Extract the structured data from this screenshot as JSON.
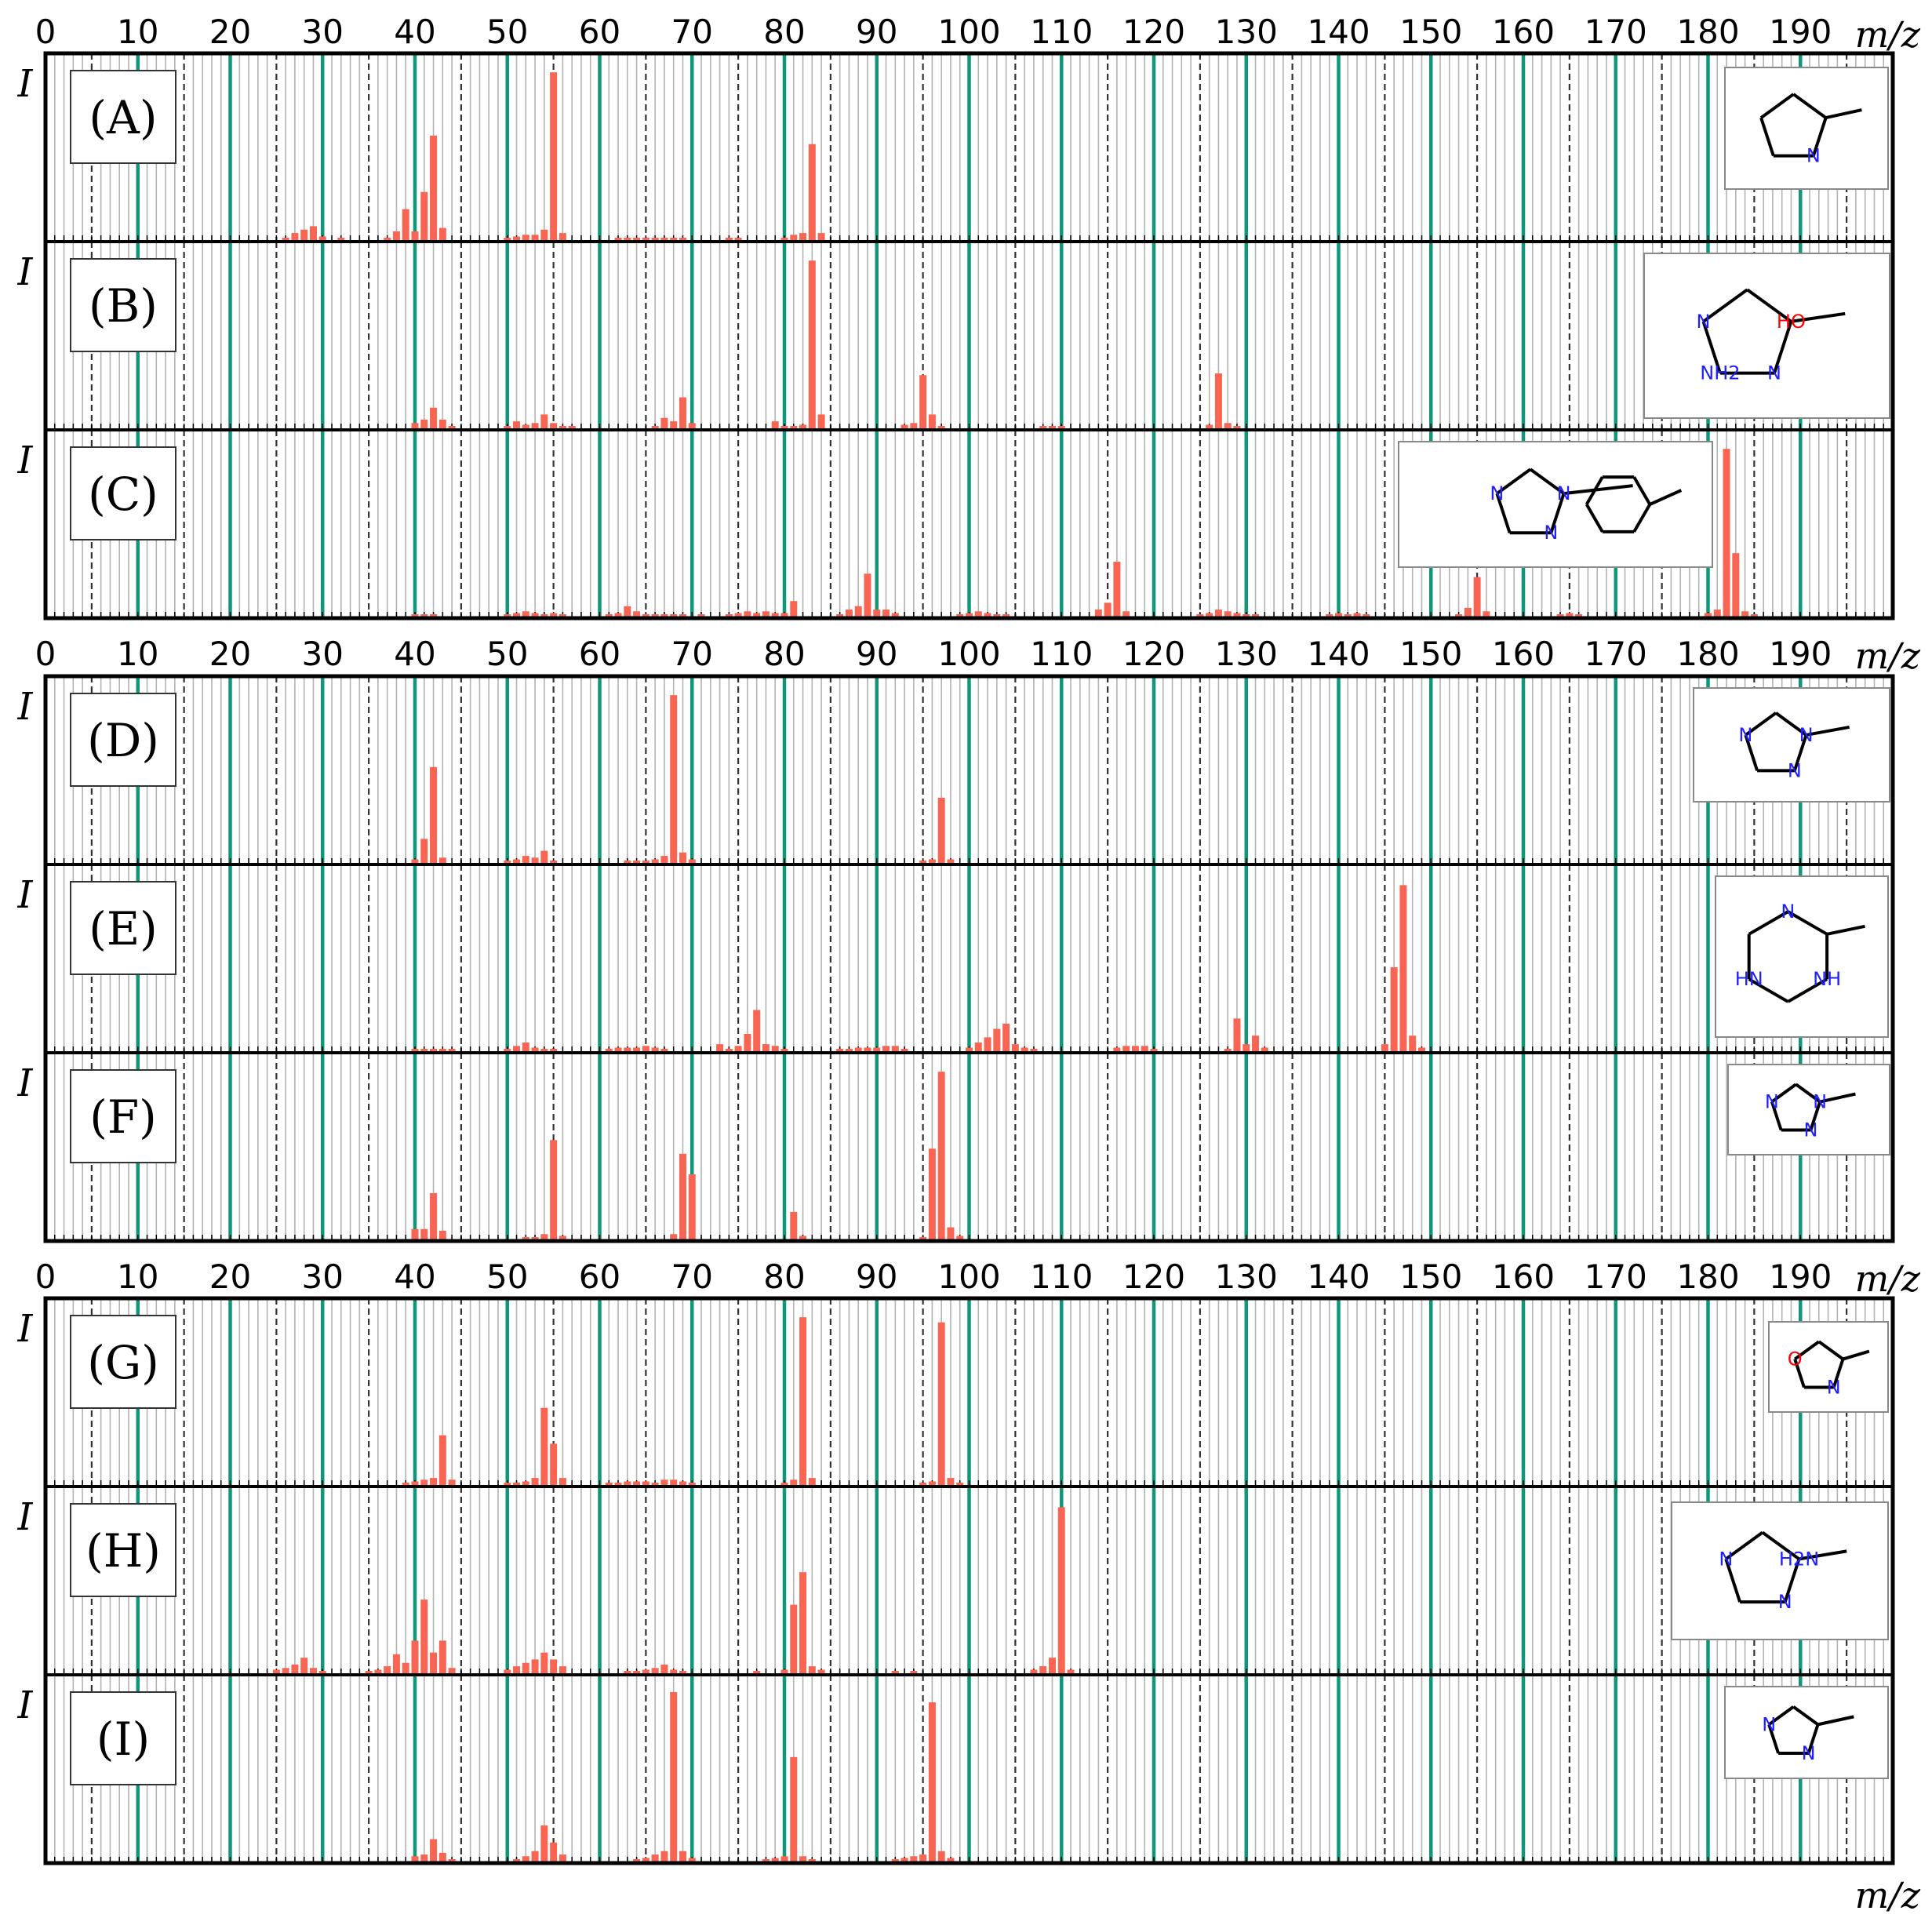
{
  "chart_data": {
    "type": "bar",
    "xlabel": "m/z",
    "ylabel": "I",
    "xlim": [
      0,
      200
    ],
    "x_ticks": [
      "0",
      "10",
      "20",
      "30",
      "40",
      "50",
      "60",
      "70",
      "80",
      "90",
      "100",
      "110",
      "120",
      "130",
      "140",
      "150",
      "160",
      "170",
      "180",
      "190"
    ],
    "grid": {
      "minor_every": 1,
      "dashed_every": 5,
      "major_every": 10
    },
    "colors": {
      "bars": "#f96553",
      "major_grid": "#10977a",
      "minor_grid": "#b3b3b3",
      "dashed_grid": "#333333",
      "frame": "#000000"
    },
    "groups": [
      {
        "panels": [
          {
            "label": "(A)",
            "structure": {
              "icon": "2-methyl-1-pyrroline-structure",
              "atom_labels": [
                "N"
              ]
            },
            "x": [
              26,
              27,
              28,
              29,
              30,
              32,
              37,
              38,
              39,
              40,
              41,
              42,
              43,
              50,
              51,
              52,
              53,
              54,
              55,
              56,
              62,
              63,
              64,
              65,
              66,
              67,
              68,
              69,
              74,
              75,
              80,
              81,
              82,
              83,
              84
            ],
            "y": [
              0.02,
              0.05,
              0.07,
              0.09,
              0.03,
              0.01,
              0.02,
              0.06,
              0.19,
              0.06,
              0.29,
              0.62,
              0.08,
              0.02,
              0.03,
              0.04,
              0.04,
              0.07,
              0.99,
              0.05,
              0.01,
              0.01,
              0.01,
              0.01,
              0.01,
              0.02,
              0.02,
              0.01,
              0.01,
              0.02,
              0.02,
              0.04,
              0.05,
              0.57,
              0.05
            ]
          },
          {
            "label": "(B)",
            "structure": {
              "icon": "2-(5-aminopyrazol-1-yl)ethanol-structure",
              "atom_labels": [
                "N",
                "N",
                "HO",
                "NH2"
              ]
            },
            "x": [
              40,
              41,
              42,
              43,
              44,
              50,
              51,
              52,
              53,
              54,
              55,
              56,
              57,
              66,
              67,
              68,
              69,
              70,
              79,
              80,
              81,
              82,
              83,
              84,
              93,
              94,
              95,
              96,
              97,
              108,
              109,
              110,
              126,
              127,
              128,
              129
            ],
            "y": [
              0.04,
              0.06,
              0.13,
              0.06,
              0.02,
              0.01,
              0.05,
              0.03,
              0.04,
              0.09,
              0.04,
              0.02,
              0.01,
              0.02,
              0.07,
              0.05,
              0.19,
              0.04,
              0.05,
              0.02,
              0.02,
              0.03,
              0.99,
              0.09,
              0.03,
              0.04,
              0.32,
              0.09,
              0.02,
              0.02,
              0.02,
              0.02,
              0.03,
              0.33,
              0.04,
              0.02
            ]
          },
          {
            "label": "(C)",
            "structure": {
              "icon": "4-(pyrazol-1-ylmethyl)benzonitrile-structure",
              "atom_labels": [
                "N",
                "N",
                "N"
              ]
            },
            "x": [
              40,
              41,
              42,
              50,
              51,
              52,
              53,
              54,
              55,
              56,
              61,
              62,
              63,
              64,
              65,
              66,
              67,
              68,
              69,
              71,
              74,
              75,
              76,
              77,
              78,
              79,
              80,
              81,
              86,
              87,
              88,
              89,
              90,
              91,
              92,
              99,
              100,
              101,
              102,
              103,
              104,
              114,
              115,
              116,
              117,
              125,
              126,
              127,
              128,
              129,
              130,
              131,
              139,
              140,
              141,
              142,
              143,
              153,
              154,
              155,
              156,
              164,
              165,
              166,
              180,
              181,
              182,
              183,
              184,
              185
            ],
            "y": [
              0.02,
              0.02,
              0.02,
              0.02,
              0.03,
              0.04,
              0.03,
              0.02,
              0.03,
              0.02,
              0.02,
              0.03,
              0.07,
              0.04,
              0.02,
              0.02,
              0.02,
              0.02,
              0.02,
              0.02,
              0.02,
              0.03,
              0.04,
              0.03,
              0.04,
              0.03,
              0.03,
              0.1,
              0.02,
              0.05,
              0.07,
              0.26,
              0.05,
              0.05,
              0.03,
              0.02,
              0.03,
              0.04,
              0.03,
              0.02,
              0.02,
              0.05,
              0.09,
              0.33,
              0.04,
              0.02,
              0.03,
              0.05,
              0.04,
              0.03,
              0.02,
              0.02,
              0.02,
              0.03,
              0.02,
              0.03,
              0.02,
              0.02,
              0.06,
              0.24,
              0.04,
              0.02,
              0.03,
              0.02,
              0.03,
              0.05,
              0.99,
              0.38,
              0.04,
              0.02
            ]
          }
        ]
      },
      {
        "panels": [
          {
            "label": "(D)",
            "structure": {
              "icon": "1,4-dimethyl-1,2,3-triazole-structure",
              "atom_labels": [
                "N",
                "N",
                "N"
              ]
            },
            "x": [
              40,
              41,
              42,
              43,
              50,
              51,
              52,
              53,
              54,
              55,
              63,
              64,
              65,
              66,
              67,
              68,
              69,
              70,
              95,
              96,
              97,
              98
            ],
            "y": [
              0.03,
              0.15,
              0.57,
              0.04,
              0.02,
              0.03,
              0.05,
              0.04,
              0.08,
              0.02,
              0.01,
              0.02,
              0.02,
              0.03,
              0.05,
              0.99,
              0.07,
              0.03,
              0.02,
              0.03,
              0.39,
              0.03
            ]
          },
          {
            "label": "(E)",
            "structure": {
              "icon": "1-methyl-3-imino-indazoline-structure",
              "atom_labels": [
                "NH",
                "HN",
                "N"
              ]
            },
            "x": [
              40,
              41,
              42,
              43,
              44,
              50,
              51,
              52,
              53,
              54,
              55,
              61,
              62,
              63,
              64,
              65,
              66,
              67,
              73,
              74,
              75,
              76,
              77,
              78,
              79,
              80,
              86,
              87,
              88,
              89,
              90,
              91,
              92,
              93,
              100,
              101,
              102,
              103,
              104,
              105,
              106,
              107,
              116,
              117,
              118,
              119,
              120,
              128,
              129,
              130,
              131,
              132,
              145,
              146,
              147,
              148,
              149
            ],
            "y": [
              0.02,
              0.02,
              0.02,
              0.02,
              0.02,
              0.02,
              0.04,
              0.06,
              0.03,
              0.02,
              0.02,
              0.02,
              0.03,
              0.03,
              0.03,
              0.04,
              0.03,
              0.02,
              0.05,
              0.02,
              0.04,
              0.11,
              0.25,
              0.05,
              0.04,
              0.02,
              0.02,
              0.02,
              0.03,
              0.03,
              0.03,
              0.04,
              0.04,
              0.02,
              0.03,
              0.06,
              0.09,
              0.14,
              0.17,
              0.05,
              0.03,
              0.02,
              0.03,
              0.04,
              0.04,
              0.04,
              0.02,
              0.02,
              0.2,
              0.05,
              0.1,
              0.03,
              0.05,
              0.5,
              0.98,
              0.1,
              0.03
            ]
          },
          {
            "label": "(F)",
            "structure": {
              "icon": "1-ethyl-1,2,4-triazole-structure",
              "atom_labels": [
                "N",
                "N",
                "N"
              ]
            },
            "x": [
              40,
              41,
              42,
              43,
              52,
              53,
              54,
              55,
              56,
              68,
              69,
              70,
              81,
              82,
              95,
              96,
              97,
              98,
              99
            ],
            "y": [
              0.07,
              0.07,
              0.28,
              0.06,
              0.02,
              0.02,
              0.04,
              0.59,
              0.03,
              0.04,
              0.51,
              0.39,
              0.17,
              0.03,
              0.02,
              0.54,
              0.99,
              0.08,
              0.03
            ]
          }
        ]
      },
      {
        "panels": [
          {
            "label": "(G)",
            "structure": {
              "icon": "3,4-dimethylisoxazole-structure",
              "atom_labels": [
                "N",
                "O"
              ]
            },
            "x": [
              39,
              40,
              41,
              42,
              43,
              44,
              50,
              51,
              52,
              53,
              54,
              55,
              56,
              61,
              62,
              63,
              64,
              65,
              66,
              67,
              68,
              69,
              70,
              80,
              81,
              82,
              83,
              95,
              96,
              97,
              98,
              99
            ],
            "y": [
              0.02,
              0.03,
              0.04,
              0.05,
              0.3,
              0.04,
              0.02,
              0.02,
              0.03,
              0.05,
              0.46,
              0.25,
              0.05,
              0.02,
              0.02,
              0.03,
              0.03,
              0.03,
              0.02,
              0.04,
              0.04,
              0.03,
              0.02,
              0.02,
              0.04,
              0.99,
              0.05,
              0.02,
              0.03,
              0.96,
              0.05,
              0.02
            ]
          },
          {
            "label": "(H)",
            "structure": {
              "icon": "2-amino-5-methylpyrazine-structure",
              "atom_labels": [
                "N",
                "N",
                "H2N"
              ]
            },
            "x": [
              25,
              26,
              27,
              28,
              29,
              30,
              35,
              36,
              37,
              38,
              39,
              40,
              41,
              42,
              43,
              44,
              50,
              51,
              52,
              53,
              54,
              55,
              56,
              63,
              64,
              65,
              66,
              67,
              68,
              69,
              77,
              80,
              81,
              82,
              83,
              84,
              92,
              94,
              107,
              108,
              109,
              110,
              111
            ],
            "y": [
              0.03,
              0.04,
              0.06,
              0.1,
              0.04,
              0.02,
              0.02,
              0.03,
              0.05,
              0.12,
              0.07,
              0.2,
              0.44,
              0.13,
              0.2,
              0.04,
              0.03,
              0.05,
              0.07,
              0.09,
              0.13,
              0.09,
              0.05,
              0.02,
              0.02,
              0.03,
              0.04,
              0.06,
              0.03,
              0.02,
              0.02,
              0.03,
              0.41,
              0.6,
              0.05,
              0.03,
              0.02,
              0.02,
              0.03,
              0.05,
              0.1,
              0.98,
              0.03
            ]
          },
          {
            "label": "(I)",
            "structure": {
              "icon": "1-ethylpyrazole-structure",
              "atom_labels": [
                "N",
                "N"
              ]
            },
            "x": [
              40,
              41,
              42,
              43,
              44,
              51,
              52,
              53,
              54,
              55,
              56,
              64,
              65,
              66,
              67,
              68,
              69,
              70,
              78,
              79,
              80,
              81,
              82,
              83,
              92,
              93,
              94,
              95,
              96,
              97,
              98
            ],
            "y": [
              0.04,
              0.05,
              0.14,
              0.06,
              0.02,
              0.02,
              0.04,
              0.07,
              0.22,
              0.12,
              0.05,
              0.02,
              0.03,
              0.05,
              0.07,
              1.0,
              0.07,
              0.03,
              0.02,
              0.03,
              0.04,
              0.62,
              0.04,
              0.02,
              0.02,
              0.03,
              0.04,
              0.05,
              0.94,
              0.07,
              0.03
            ]
          }
        ]
      }
    ]
  }
}
